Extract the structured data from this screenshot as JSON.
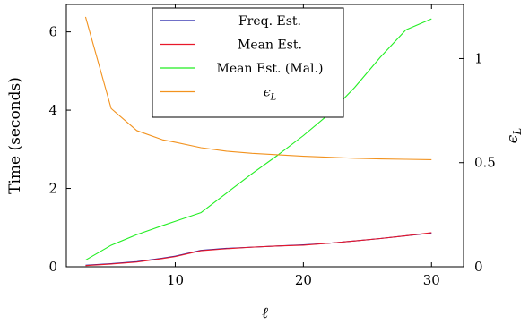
{
  "chart_data": {
    "type": "line",
    "xlabel": "ℓ",
    "ylabel_left": "Time (seconds)",
    "ylabel_right": "ϵ_L",
    "xlim": [
      1.5,
      32.5
    ],
    "ylim_left": [
      0,
      6.7
    ],
    "ylim_right": [
      0,
      1.26
    ],
    "xticks": [
      10,
      20,
      30
    ],
    "yticks_left": [
      0,
      2,
      4,
      6
    ],
    "yticks_right": [
      0,
      0.5,
      1
    ],
    "grid": false,
    "legend_position": "top-center",
    "series": [
      {
        "name": "Freq. Est.",
        "axis": "left",
        "color": "#1a1aa8",
        "x": [
          3,
          5,
          7,
          9,
          10,
          12,
          14,
          16,
          18,
          20,
          22,
          24,
          26,
          28,
          30
        ],
        "y": [
          0.04,
          0.08,
          0.13,
          0.22,
          0.27,
          0.42,
          0.47,
          0.5,
          0.53,
          0.56,
          0.6,
          0.66,
          0.72,
          0.79,
          0.86
        ]
      },
      {
        "name": "Mean Est.",
        "axis": "left",
        "color": "#e8182a",
        "x": [
          3,
          5,
          7,
          9,
          10,
          12,
          14,
          16,
          18,
          20,
          22,
          24,
          26,
          28,
          30
        ],
        "y": [
          0.03,
          0.07,
          0.12,
          0.21,
          0.26,
          0.41,
          0.46,
          0.5,
          0.53,
          0.55,
          0.6,
          0.66,
          0.72,
          0.79,
          0.87
        ]
      },
      {
        "name": "Mean Est. (Mal.)",
        "axis": "left",
        "color": "#22ee22",
        "x": [
          3,
          5,
          7,
          9,
          10,
          12,
          14,
          16,
          18,
          20,
          22,
          24,
          26,
          28,
          30
        ],
        "y": [
          0.17,
          0.55,
          0.82,
          1.05,
          1.16,
          1.38,
          1.88,
          2.38,
          2.85,
          3.35,
          3.9,
          4.58,
          5.35,
          6.05,
          6.33
        ]
      },
      {
        "name": "ϵ_L",
        "axis": "right",
        "color": "#f2921e",
        "x": [
          3,
          5,
          7,
          9,
          10,
          12,
          14,
          16,
          18,
          20,
          22,
          24,
          26,
          28,
          30
        ],
        "y": [
          1.2,
          0.76,
          0.654,
          0.61,
          0.598,
          0.572,
          0.555,
          0.545,
          0.538,
          0.531,
          0.526,
          0.521,
          0.518,
          0.516,
          0.514
        ]
      }
    ]
  }
}
